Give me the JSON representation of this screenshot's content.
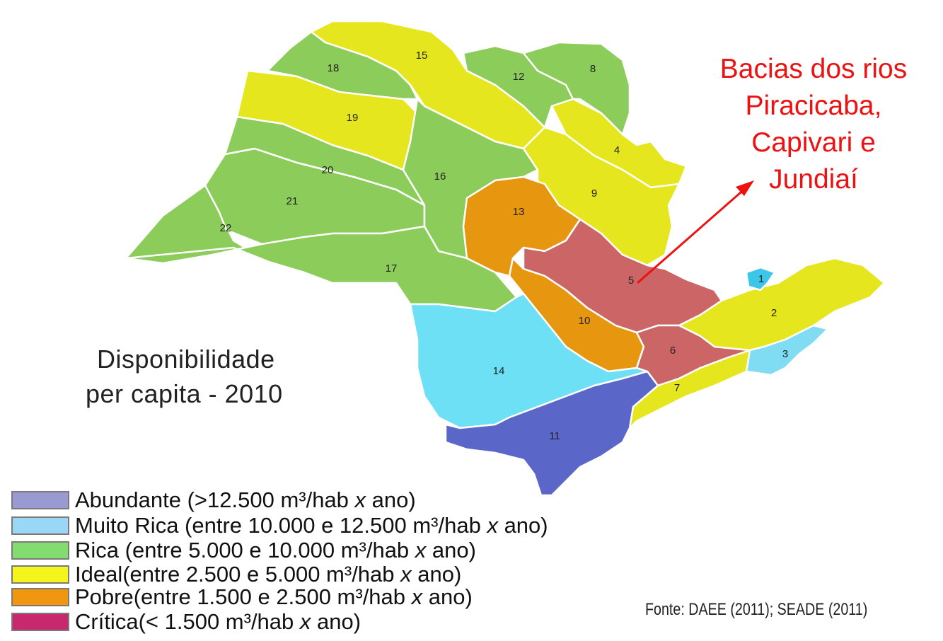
{
  "title": {
    "line1": "Disponibilidade",
    "line2": "per capita - 2010"
  },
  "callout": {
    "lines": [
      "Bacias dos rios",
      "Piracicaba,",
      "Capivari e",
      "Jundiaí"
    ],
    "color": "#ee1111",
    "target_region": "5"
  },
  "regions": [
    {
      "id": "1",
      "category": "Muito Rica",
      "color": "#3cc6ea"
    },
    {
      "id": "2",
      "category": "Ideal",
      "color": "#e6e61e"
    },
    {
      "id": "3",
      "category": "Muito Rica",
      "color": "#7fdcf2"
    },
    {
      "id": "4",
      "category": "Ideal",
      "color": "#e6e61e"
    },
    {
      "id": "5",
      "category": "Crítica",
      "color": "#cc6666"
    },
    {
      "id": "6",
      "category": "Crítica",
      "color": "#cc6666"
    },
    {
      "id": "7",
      "category": "Ideal",
      "color": "#e6e61e"
    },
    {
      "id": "8",
      "category": "Rica",
      "color": "#8ccc5a"
    },
    {
      "id": "9",
      "category": "Ideal",
      "color": "#e6e61e"
    },
    {
      "id": "10",
      "category": "Pobre",
      "color": "#e6960f"
    },
    {
      "id": "11",
      "category": "Abundante",
      "color": "#5a66c8"
    },
    {
      "id": "12",
      "category": "Rica",
      "color": "#8ccc5a"
    },
    {
      "id": "13",
      "category": "Pobre",
      "color": "#e6960f"
    },
    {
      "id": "14",
      "category": "Muito Rica",
      "color": "#6ee0f5"
    },
    {
      "id": "15",
      "category": "Ideal",
      "color": "#e6e61e"
    },
    {
      "id": "16",
      "category": "Rica",
      "color": "#8ccc5a"
    },
    {
      "id": "17",
      "category": "Rica",
      "color": "#8ccc5a"
    },
    {
      "id": "18",
      "category": "Rica",
      "color": "#8ccc5a"
    },
    {
      "id": "19",
      "category": "Ideal",
      "color": "#e6e61e"
    },
    {
      "id": "20",
      "category": "Rica",
      "color": "#8ccc5a"
    },
    {
      "id": "21",
      "category": "Rica",
      "color": "#8ccc5a"
    },
    {
      "id": "22",
      "category": "Rica",
      "color": "#8ccc5a"
    }
  ],
  "legend": [
    {
      "label": "Abundante (>12.500 m³/hab ",
      "italic": "x",
      "suffix": " ano)",
      "color": "#9a9ad2"
    },
    {
      "label": "Muito Rica (entre 10.000 e 12.500 m³/hab ",
      "italic": "x",
      "suffix": " ano)",
      "color": "#9ad6f5"
    },
    {
      "label": "Rica (entre 5.000 e 10.000 m³/hab ",
      "italic": "x",
      "suffix": " ano)",
      "color": "#82dc6e"
    },
    {
      "label": "Ideal(entre 2.500 e 5.000 m³/hab ",
      "italic": "x",
      "suffix": " ano)",
      "color": "#f5f51e"
    },
    {
      "label": "Pobre(entre 1.500 e 2.500 m³/hab ",
      "italic": "x",
      "suffix": " ano)",
      "color": "#f0960f"
    },
    {
      "label": "Crítica(< 1.500  m³/hab ",
      "italic": "x",
      "suffix": " ano)",
      "color": "#c8286e"
    }
  ],
  "source": "Fonte: DAEE (2011); SEADE (2011)"
}
